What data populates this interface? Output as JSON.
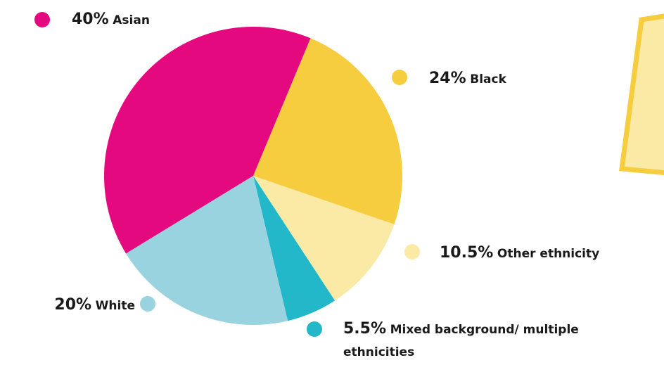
{
  "chart_data": {
    "type": "pie",
    "categories": [
      "Black",
      "Other ethnicity",
      "Mixed background/ multiple ethnicities",
      "White",
      "Asian"
    ],
    "values": [
      24,
      10.5,
      5.5,
      20,
      40
    ],
    "value_labels": [
      "24%",
      "10.5%",
      "5.5%",
      "20%",
      "40%"
    ],
    "colors": [
      "#f5cd3f",
      "#fbe9a6",
      "#22b7c9",
      "#9ad3e0",
      "#e5097f"
    ]
  }
}
